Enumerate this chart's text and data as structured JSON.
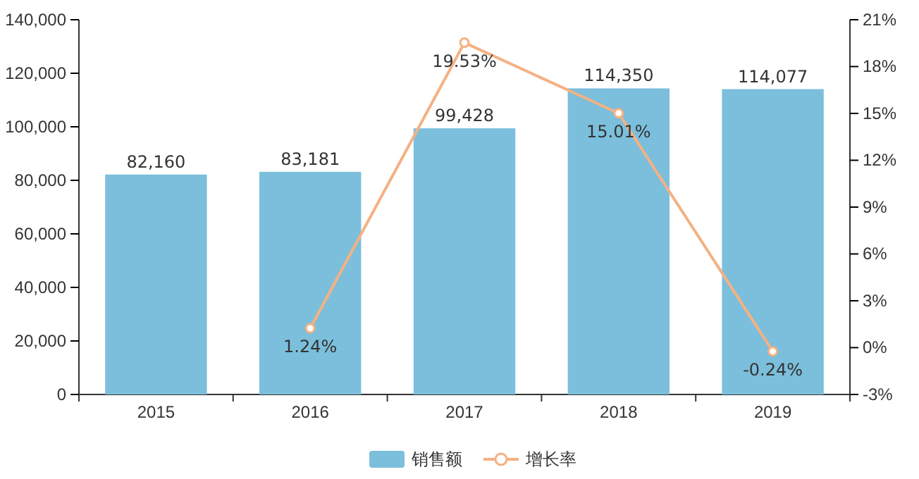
{
  "chart_data": {
    "type": "bar",
    "categories": [
      "2015",
      "2016",
      "2017",
      "2018",
      "2019"
    ],
    "series": [
      {
        "name": "销售额",
        "color": "#7bbfdc",
        "values": [
          82160,
          83181,
          99428,
          114350,
          114077
        ],
        "value_labels": [
          "82,160",
          "83,181",
          "99,428",
          "114,350",
          "114,077"
        ]
      },
      {
        "name": "增长率",
        "type": "line",
        "axis": "y2",
        "color": "#f4b183",
        "values": [
          null,
          1.24,
          19.53,
          15.01,
          -0.24
        ],
        "value_labels": [
          null,
          "1.24%",
          "19.53%",
          "15.01%",
          "-0.24%"
        ],
        "marker": "circle"
      }
    ],
    "ylim": [
      0,
      140000
    ],
    "yticks": [
      0,
      {
        "value": 20000,
        "label": "20,000"
      },
      {
        "value": 40000,
        "label": "40,000"
      },
      {
        "value": 60000,
        "label": "60,000"
      },
      {
        "value": 80000,
        "label": "80,000"
      },
      {
        "value": 100000,
        "label": "100,000"
      },
      {
        "value": 120000,
        "label": "120,000"
      },
      {
        "value": 140000,
        "label": "140,000"
      }
    ],
    "y2lim": [
      -3,
      21
    ],
    "y2ticks": [
      {
        "value": -3,
        "label": "-3%"
      },
      {
        "value": 0,
        "label": "0%"
      },
      {
        "value": 3,
        "label": "3%"
      },
      {
        "value": 6,
        "label": "6%"
      },
      {
        "value": 9,
        "label": "9%"
      },
      {
        "value": 12,
        "label": "12%"
      },
      {
        "value": 15,
        "label": "15%"
      },
      {
        "value": 18,
        "label": "18%"
      },
      {
        "value": 21,
        "label": "21%"
      }
    ],
    "grid": false,
    "legend": "bottom"
  }
}
